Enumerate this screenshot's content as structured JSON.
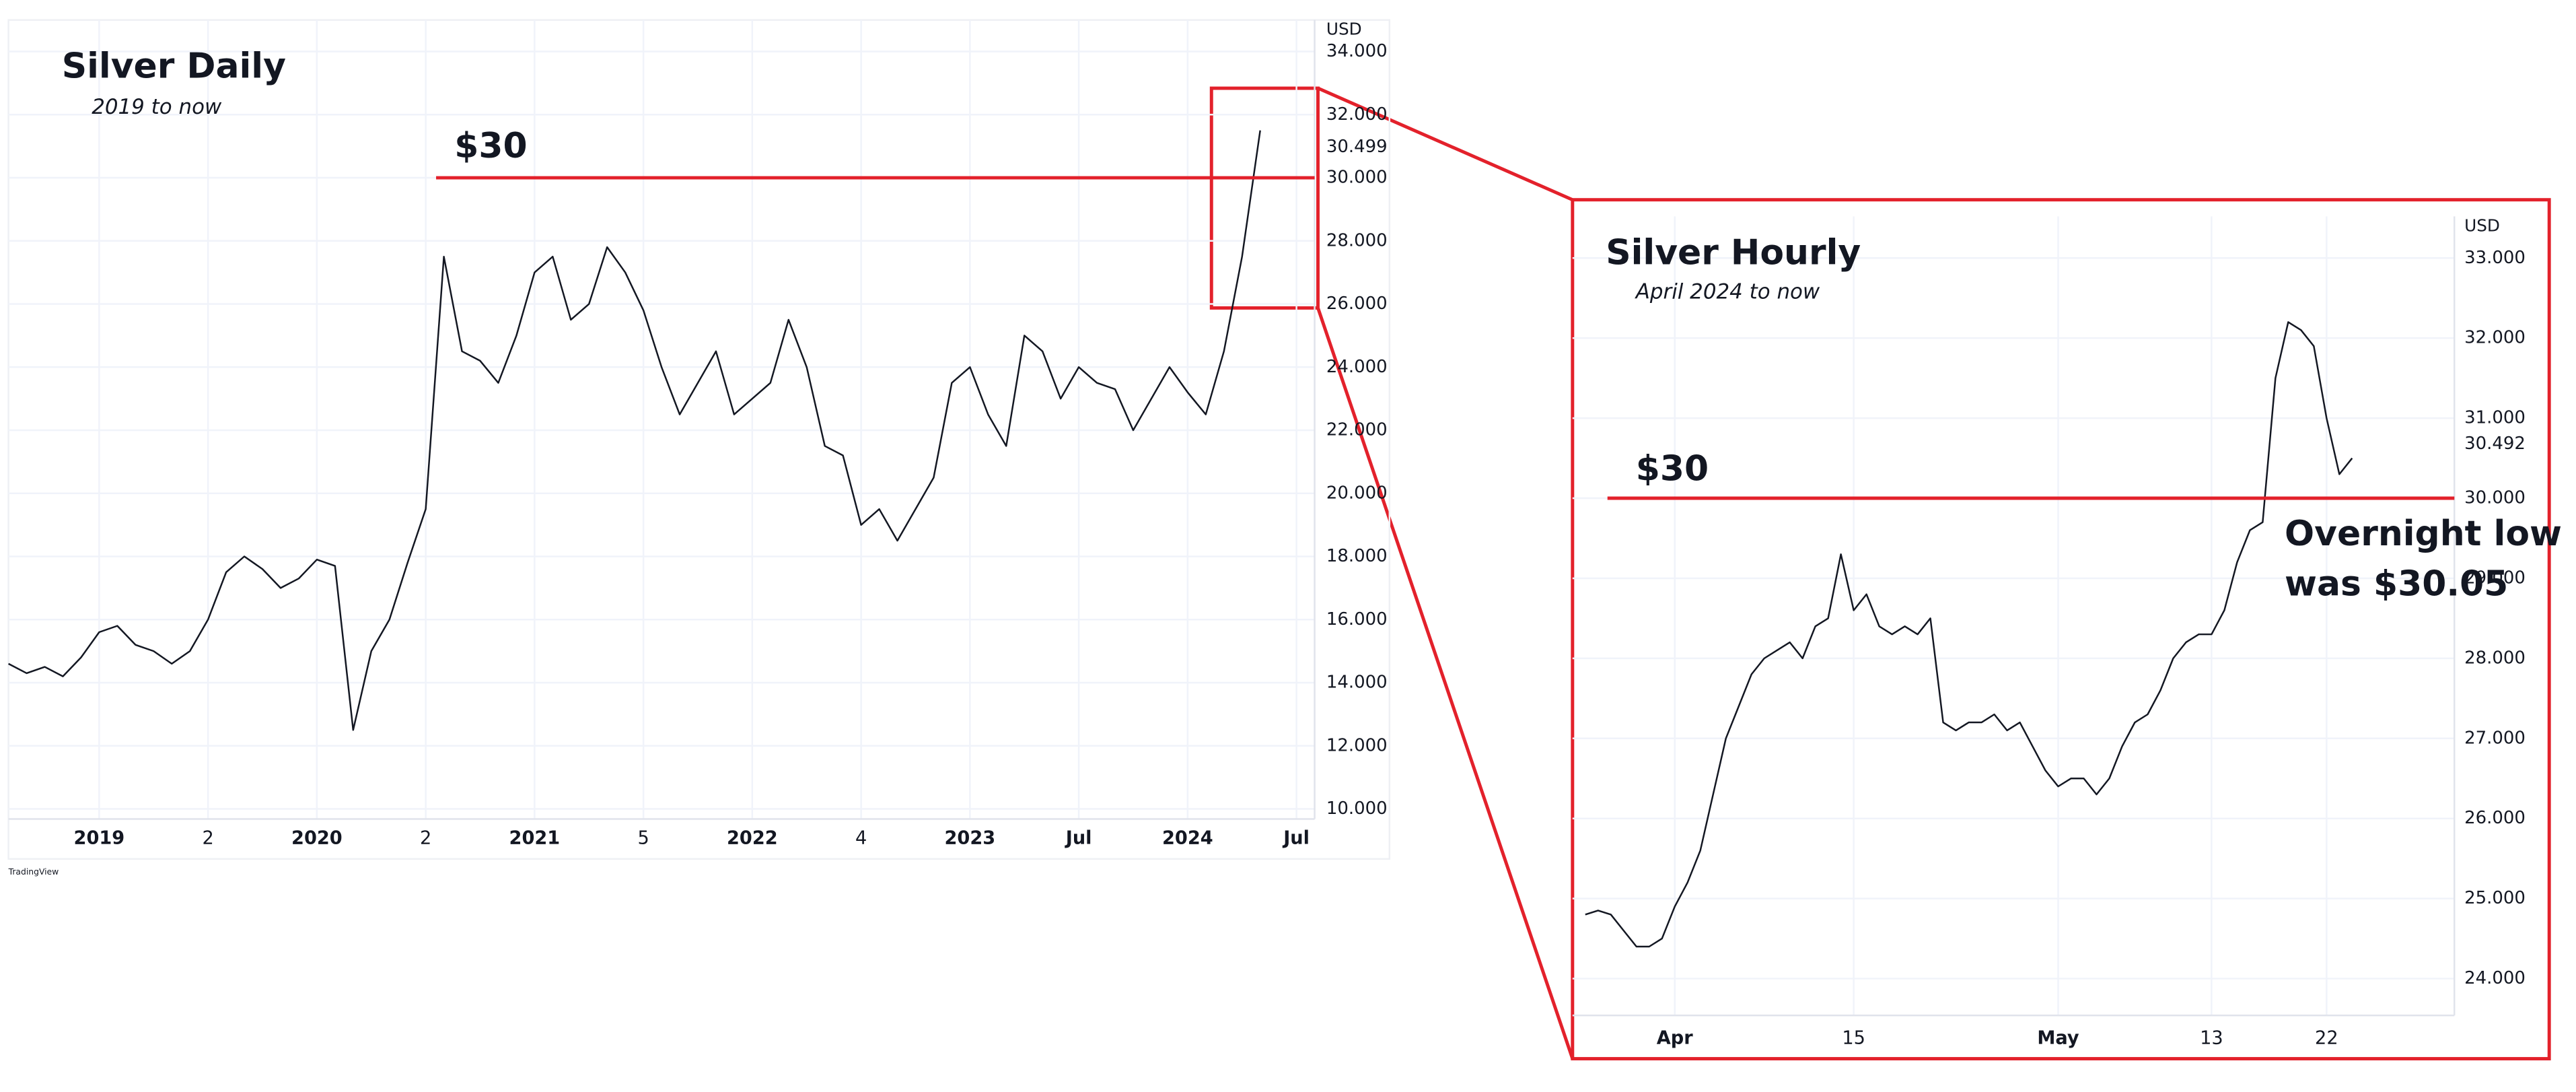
{
  "chart_data": [
    {
      "type": "line",
      "title": "Silver Daily",
      "subtitle": "2019 to now",
      "unit": "USD",
      "watermark": "TradingView",
      "x": [
        "2018-08",
        "2018-09",
        "2018-10",
        "2018-11",
        "2018-12",
        "2019-01",
        "2019-02",
        "2019-03",
        "2019-04",
        "2019-05",
        "2019-06",
        "2019-07",
        "2019-08",
        "2019-09",
        "2019-10",
        "2019-11",
        "2019-12",
        "2020-01",
        "2020-02",
        "2020-03",
        "2020-04",
        "2020-05",
        "2020-06",
        "2020-07",
        "2020-08",
        "2020-09",
        "2020-10",
        "2020-11",
        "2020-12",
        "2021-01",
        "2021-02",
        "2021-03",
        "2021-04",
        "2021-05",
        "2021-06",
        "2021-07",
        "2021-08",
        "2021-09",
        "2021-10",
        "2021-11",
        "2021-12",
        "2022-01",
        "2022-02",
        "2022-03",
        "2022-04",
        "2022-05",
        "2022-06",
        "2022-07",
        "2022-08",
        "2022-09",
        "2022-10",
        "2022-11",
        "2022-12",
        "2023-01",
        "2023-02",
        "2023-03",
        "2023-04",
        "2023-05",
        "2023-06",
        "2023-07",
        "2023-08",
        "2023-09",
        "2023-10",
        "2023-11",
        "2023-12",
        "2024-01",
        "2024-02",
        "2024-03",
        "2024-04",
        "2024-05"
      ],
      "series": [
        {
          "color": "#131722",
          "values": [
            14.6,
            14.3,
            14.5,
            14.2,
            14.8,
            15.6,
            15.8,
            15.2,
            15.0,
            14.6,
            15.0,
            16.0,
            17.5,
            18.0,
            17.6,
            17.0,
            17.3,
            17.9,
            17.7,
            12.5,
            15.0,
            16.0,
            17.8,
            19.5,
            27.5,
            24.5,
            24.2,
            23.5,
            25.0,
            27.0,
            27.5,
            25.5,
            26.0,
            27.8,
            27.0,
            25.8,
            24.0,
            22.5,
            23.5,
            24.5,
            22.5,
            23.0,
            23.5,
            25.5,
            24.0,
            21.5,
            21.2,
            19.0,
            19.5,
            18.5,
            19.5,
            20.5,
            23.5,
            24.0,
            22.5,
            21.5,
            25.0,
            24.5,
            23.0,
            24.0,
            23.5,
            23.3,
            22.0,
            23.0,
            24.0,
            23.2,
            22.5,
            24.5,
            27.5,
            31.5
          ]
        }
      ],
      "xlim": [
        "2018-08",
        "2024-08"
      ],
      "xticks": [
        {
          "value": "2019-01",
          "label": "2019"
        },
        {
          "value": "2019-07",
          "label": "2"
        },
        {
          "value": "2020-01",
          "label": "2020"
        },
        {
          "value": "2020-07",
          "label": "2"
        },
        {
          "value": "2021-01",
          "label": "2021"
        },
        {
          "value": "2021-07",
          "label": "5"
        },
        {
          "value": "2022-01",
          "label": "2022"
        },
        {
          "value": "2022-07",
          "label": "4"
        },
        {
          "value": "2023-01",
          "label": "2023"
        },
        {
          "value": "2023-07",
          "label": "Jul"
        },
        {
          "value": "2024-01",
          "label": "2024"
        },
        {
          "value": "2024-07",
          "label": "Jul"
        }
      ],
      "ylim": [
        9.68,
        35.0
      ],
      "yticks": [
        {
          "value": 10,
          "label": "10.000"
        },
        {
          "value": 12,
          "label": "12.000"
        },
        {
          "value": 14,
          "label": "14.000"
        },
        {
          "value": 16,
          "label": "16.000"
        },
        {
          "value": 18,
          "label": "18.000"
        },
        {
          "value": 20,
          "label": "20.000"
        },
        {
          "value": 22,
          "label": "22.000"
        },
        {
          "value": 24,
          "label": "24.000"
        },
        {
          "value": 26,
          "label": "26.000"
        },
        {
          "value": 28,
          "label": "28.000"
        },
        {
          "value": 30,
          "label": "30.000"
        },
        {
          "value": 32,
          "label": "32.000"
        },
        {
          "value": 34,
          "label": "34.000"
        }
      ],
      "grid": true,
      "reference_line": {
        "value": 30,
        "label": "$30",
        "color": "#e3212b"
      },
      "last_price": 30.499
    },
    {
      "type": "line",
      "title": "Silver Hourly",
      "subtitle": "April 2024 to now",
      "unit": "USD",
      "x": [
        "03-25",
        "03-26",
        "03-27",
        "03-28",
        "03-29",
        "03-30",
        "03-31",
        "04-01",
        "04-02",
        "04-03",
        "04-04",
        "04-05",
        "04-06",
        "04-07",
        "04-08",
        "04-09",
        "04-10",
        "04-11",
        "04-12",
        "04-13",
        "04-14",
        "04-15",
        "04-16",
        "04-17",
        "04-18",
        "04-19",
        "04-20",
        "04-21",
        "04-22",
        "04-23",
        "04-24",
        "04-25",
        "04-26",
        "04-27",
        "04-28",
        "04-29",
        "04-30",
        "05-01",
        "05-02",
        "05-03",
        "05-04",
        "05-05",
        "05-06",
        "05-07",
        "05-08",
        "05-09",
        "05-10",
        "05-11",
        "05-12",
        "05-13",
        "05-14",
        "05-15",
        "05-16",
        "05-17",
        "05-18",
        "05-19",
        "05-20",
        "05-21",
        "05-22",
        "05-23",
        "05-24"
      ],
      "series": [
        {
          "color": "#131722",
          "values": [
            24.8,
            24.85,
            24.8,
            24.6,
            24.4,
            24.4,
            24.5,
            24.9,
            25.2,
            25.6,
            26.3,
            27.0,
            27.4,
            27.8,
            28.0,
            28.1,
            28.2,
            28.0,
            28.4,
            28.5,
            29.3,
            28.6,
            28.8,
            28.4,
            28.3,
            28.4,
            28.3,
            28.5,
            27.2,
            27.1,
            27.2,
            27.2,
            27.3,
            27.1,
            27.2,
            26.9,
            26.6,
            26.4,
            26.5,
            26.5,
            26.3,
            26.5,
            26.9,
            27.2,
            27.3,
            27.6,
            28.0,
            28.2,
            28.3,
            28.3,
            28.6,
            29.2,
            29.6,
            29.7,
            31.5,
            32.2,
            32.1,
            31.9,
            31.0,
            30.3,
            30.5
          ]
        }
      ],
      "xlim": [
        "03-24",
        "06-01"
      ],
      "xticks": [
        {
          "value": "04-01",
          "label": "Apr"
        },
        {
          "value": "04-15",
          "label": "15"
        },
        {
          "value": "05-01",
          "label": "May"
        },
        {
          "value": "05-13",
          "label": "13"
        },
        {
          "value": "05-22",
          "label": "22"
        }
      ],
      "ylim": [
        23.54,
        33.52
      ],
      "yticks": [
        {
          "value": 24,
          "label": "24.000"
        },
        {
          "value": 25,
          "label": "25.000"
        },
        {
          "value": 26,
          "label": "26.000"
        },
        {
          "value": 27,
          "label": "27.000"
        },
        {
          "value": 28,
          "label": "28.000"
        },
        {
          "value": 29,
          "label": "29.000"
        },
        {
          "value": 30,
          "label": "30.000"
        },
        {
          "value": 31,
          "label": "31.000"
        },
        {
          "value": 32,
          "label": "32.000"
        },
        {
          "value": 33,
          "label": "33.000"
        }
      ],
      "grid": true,
      "reference_line": {
        "value": 30,
        "label": "$30",
        "color": "#e3212b"
      },
      "last_price": 30.492,
      "annotation": [
        "Overnight low",
        "was $30.05"
      ]
    }
  ]
}
